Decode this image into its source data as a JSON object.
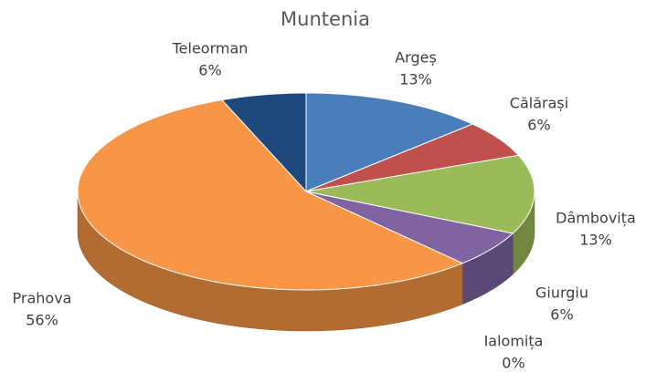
{
  "chart_data": {
    "type": "pie",
    "title": "Muntenia",
    "categories": [
      "Argeș",
      "Călărași",
      "Dâmbovița",
      "Giurgiu",
      "Ialomița",
      "Prahova",
      "Teleorman"
    ],
    "values": [
      13,
      6,
      13,
      6,
      0,
      56,
      6
    ],
    "value_labels": [
      "13%",
      "6%",
      "13%",
      "6%",
      "0%",
      "56%",
      "6%"
    ],
    "colors": [
      "#4a7ebb",
      "#c0504d",
      "#9bbb59",
      "#8064a2",
      "#4bacc6",
      "#f79646",
      "#1f497d"
    ]
  }
}
